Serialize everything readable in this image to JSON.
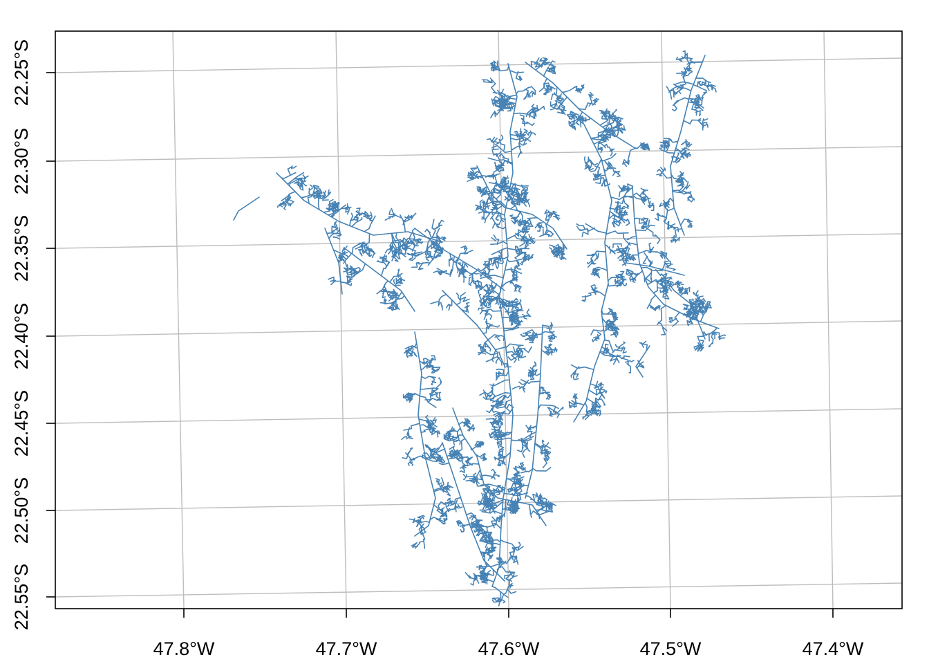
{
  "map": {
    "x_tick_labels": [
      "47.8°W",
      "47.7°W",
      "47.6°W",
      "47.5°W",
      "47.4°W"
    ],
    "y_tick_labels": [
      "22.25°S",
      "22.30°S",
      "22.35°S",
      "22.40°S",
      "22.45°S",
      "22.50°S",
      "22.55°S"
    ],
    "longitudes": [
      -47.8,
      -47.7,
      -47.6,
      -47.5,
      -47.4
    ],
    "latitudes": [
      -22.25,
      -22.3,
      -22.35,
      -22.4,
      -22.45,
      -22.5,
      -22.55
    ],
    "graticule": true,
    "feature_color": "#4682b4",
    "grid_color": "#bdbdbd",
    "feature_type": "stream network (lines)"
  }
}
